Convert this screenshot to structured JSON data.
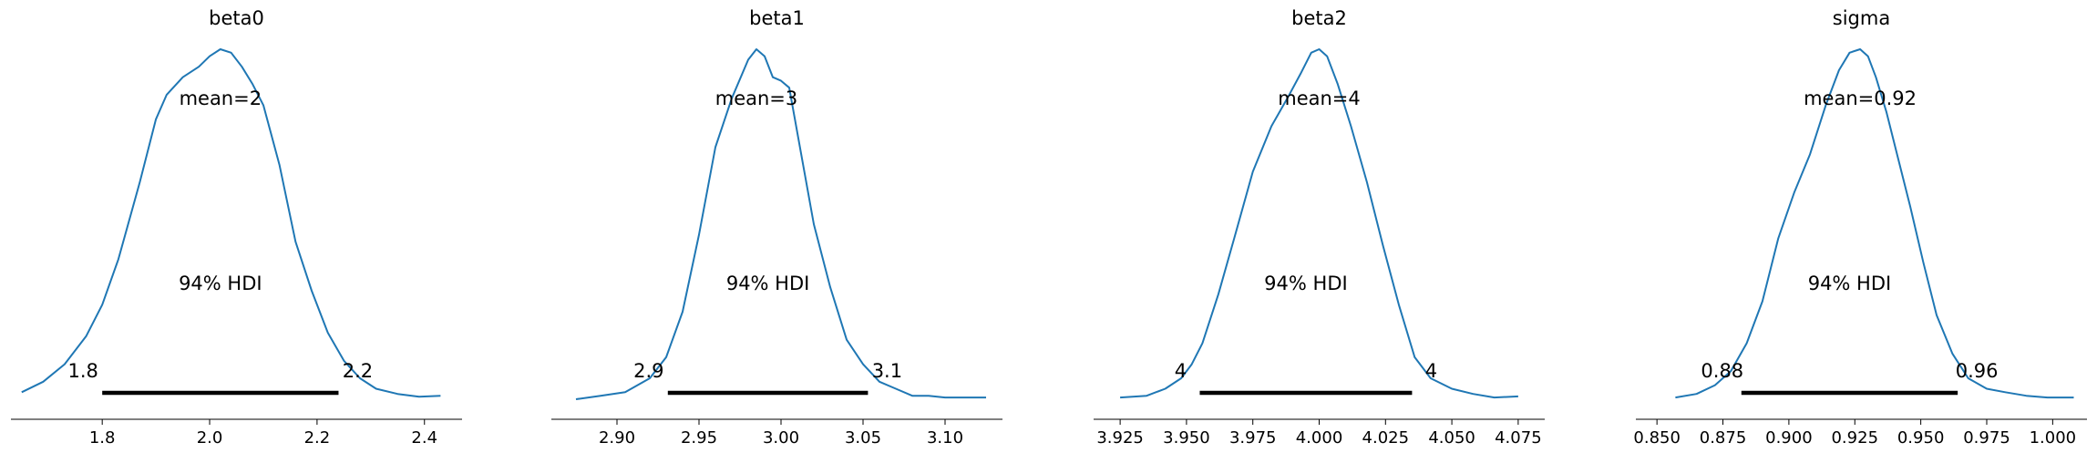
{
  "chart_data": [
    {
      "type": "area",
      "title": "beta0",
      "mean_label": "mean=2",
      "hdi_label": "94% HDI",
      "hdi": [
        1.8,
        2.24
      ],
      "hdi_low_label": "1.8",
      "hdi_high_label": "2.2",
      "xlim": [
        1.63,
        2.47
      ],
      "xticks": [
        1.8,
        2.0,
        2.2,
        2.4
      ],
      "xtick_labels": [
        "1.8",
        "2.0",
        "2.2",
        "2.4"
      ],
      "density": {
        "x": [
          1.65,
          1.69,
          1.73,
          1.77,
          1.8,
          1.83,
          1.87,
          1.9,
          1.92,
          1.95,
          1.98,
          2.0,
          2.02,
          2.04,
          2.06,
          2.08,
          2.1,
          2.13,
          2.16,
          2.19,
          2.22,
          2.25,
          2.28,
          2.31,
          2.35,
          2.39,
          2.43
        ],
        "y": [
          0.02,
          0.05,
          0.1,
          0.18,
          0.27,
          0.4,
          0.62,
          0.8,
          0.87,
          0.92,
          0.95,
          0.98,
          1.0,
          0.99,
          0.95,
          0.9,
          0.84,
          0.67,
          0.45,
          0.31,
          0.19,
          0.11,
          0.06,
          0.03,
          0.015,
          0.007,
          0.01
        ]
      }
    },
    {
      "type": "area",
      "title": "beta1",
      "mean_label": "mean=3",
      "hdi_label": "94% HDI",
      "hdi": [
        2.931,
        3.053
      ],
      "hdi_low_label": "2.9",
      "hdi_high_label": "3.1",
      "xlim": [
        2.86,
        3.135
      ],
      "xticks": [
        2.9,
        2.95,
        3.0,
        3.05,
        3.1
      ],
      "xtick_labels": [
        "2.90",
        "2.95",
        "3.00",
        "3.05",
        "3.10"
      ],
      "density": {
        "x": [
          2.875,
          2.89,
          2.905,
          2.92,
          2.93,
          2.94,
          2.95,
          2.96,
          2.97,
          2.98,
          2.985,
          2.99,
          2.995,
          3.0,
          3.005,
          3.01,
          3.02,
          3.03,
          3.04,
          3.05,
          3.06,
          3.07,
          3.08,
          3.09,
          3.1,
          3.11,
          3.125
        ],
        "y": [
          0.0,
          0.01,
          0.02,
          0.06,
          0.12,
          0.25,
          0.47,
          0.72,
          0.86,
          0.97,
          1.0,
          0.98,
          0.92,
          0.91,
          0.89,
          0.76,
          0.5,
          0.32,
          0.17,
          0.1,
          0.05,
          0.03,
          0.01,
          0.01,
          0.005,
          0.005,
          0.005
        ]
      }
    },
    {
      "type": "area",
      "title": "beta2",
      "mean_label": "mean=4",
      "hdi_label": "94% HDI",
      "hdi": [
        3.955,
        4.035
      ],
      "hdi_low_label": "4",
      "hdi_high_label": "4",
      "xlim": [
        3.915,
        4.085
      ],
      "xticks": [
        3.925,
        3.95,
        3.975,
        4.0,
        4.025,
        4.05,
        4.075
      ],
      "xtick_labels": [
        "3.925",
        "3.950",
        "3.975",
        "4.000",
        "4.025",
        "4.050",
        "4.075"
      ],
      "density": {
        "x": [
          3.925,
          3.935,
          3.942,
          3.948,
          3.952,
          3.956,
          3.962,
          3.968,
          3.975,
          3.982,
          3.988,
          3.993,
          3.997,
          4.0,
          4.003,
          4.007,
          4.012,
          4.018,
          4.024,
          4.03,
          4.036,
          4.042,
          4.05,
          4.058,
          4.066,
          4.075
        ],
        "y": [
          0.005,
          0.01,
          0.03,
          0.06,
          0.1,
          0.16,
          0.3,
          0.46,
          0.65,
          0.78,
          0.86,
          0.93,
          0.99,
          1.0,
          0.98,
          0.9,
          0.78,
          0.62,
          0.44,
          0.27,
          0.12,
          0.06,
          0.03,
          0.015,
          0.005,
          0.008
        ]
      }
    },
    {
      "type": "area",
      "title": "sigma",
      "mean_label": "mean=0.92",
      "hdi_label": "94% HDI",
      "hdi": [
        0.882,
        0.964
      ],
      "hdi_low_label": "0.88",
      "hdi_high_label": "0.96",
      "xlim": [
        0.842,
        1.013
      ],
      "xticks": [
        0.85,
        0.875,
        0.9,
        0.925,
        0.95,
        0.975,
        1.0
      ],
      "xtick_labels": [
        "0.850",
        "0.875",
        "0.900",
        "0.925",
        "0.950",
        "0.975",
        "1.000"
      ],
      "density": {
        "x": [
          0.857,
          0.865,
          0.872,
          0.878,
          0.884,
          0.89,
          0.896,
          0.902,
          0.908,
          0.914,
          0.919,
          0.923,
          0.927,
          0.93,
          0.933,
          0.937,
          0.941,
          0.946,
          0.951,
          0.956,
          0.962,
          0.968,
          0.975,
          0.982,
          0.99,
          0.998,
          1.008
        ],
        "y": [
          0.005,
          0.015,
          0.04,
          0.08,
          0.16,
          0.28,
          0.46,
          0.59,
          0.7,
          0.84,
          0.94,
          0.99,
          1.0,
          0.98,
          0.92,
          0.82,
          0.7,
          0.55,
          0.39,
          0.24,
          0.13,
          0.06,
          0.03,
          0.02,
          0.01,
          0.005,
          0.005
        ]
      }
    }
  ]
}
